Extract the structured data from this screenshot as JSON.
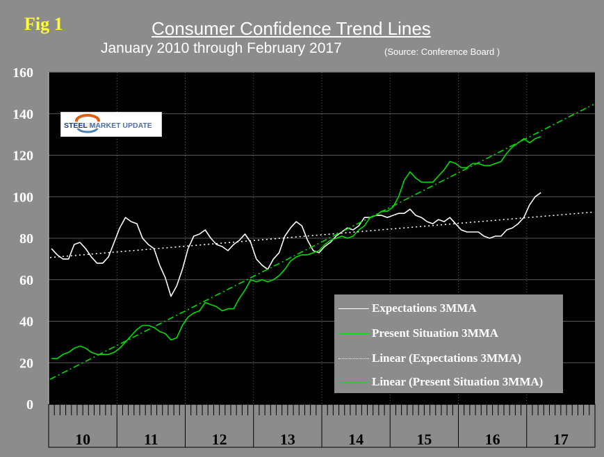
{
  "figure_label": "Fig 1",
  "title": "Consumer Confidence Trend Lines",
  "subtitle": "January 2010 through February 2017",
  "source": "(Source: Conference Board )",
  "logo": {
    "text_part1": "STEEL",
    "text_part2": "MARKET UPDATE"
  },
  "colors": {
    "background": "#8c8c8c",
    "plot_bg": "#000000",
    "expectations": "#ffffff",
    "present": "#00dd00"
  },
  "chart_data": {
    "type": "line",
    "title": "Consumer Confidence Trend Lines",
    "ylim": [
      0,
      160
    ],
    "yticks": [
      0,
      20,
      40,
      60,
      80,
      100,
      120,
      140,
      160
    ],
    "year_labels": [
      "10",
      "11",
      "12",
      "13",
      "14",
      "15",
      "16",
      "17"
    ],
    "x_start": "2010-01",
    "months_per_year": 12,
    "grid": true,
    "legend_position": "bottom-right",
    "series": [
      {
        "name": "Expectations 3MMA",
        "style": "solid",
        "color": "#ffffff",
        "values": [
          75,
          72,
          70,
          70,
          77,
          78,
          75,
          71,
          68,
          68,
          71,
          78,
          85,
          90,
          88,
          87,
          80,
          77,
          75,
          67,
          61,
          52,
          57,
          65,
          75,
          81,
          82,
          84,
          80,
          77,
          76,
          74,
          77,
          79,
          82,
          78,
          70,
          67,
          65,
          70,
          73,
          81,
          85,
          88,
          86,
          79,
          74,
          73,
          76,
          78,
          81,
          83,
          85,
          84,
          86,
          90,
          90,
          91,
          91,
          90,
          91,
          92,
          92,
          94,
          91,
          90,
          88,
          87,
          89,
          88,
          90,
          87,
          84,
          83,
          83,
          83,
          81,
          80,
          81,
          81,
          84,
          85,
          87,
          90,
          96,
          100,
          102
        ]
      },
      {
        "name": "Present Situation 3MMA",
        "style": "solid",
        "color": "#00dd00",
        "values": [
          22,
          22,
          24,
          25,
          27,
          28,
          27,
          25,
          24,
          24,
          24,
          25,
          27,
          30,
          33,
          36,
          38,
          38,
          37,
          35,
          34,
          31,
          32,
          38,
          42,
          44,
          45,
          49,
          48,
          47,
          45,
          46,
          46,
          51,
          55,
          60,
          59,
          60,
          59,
          60,
          62,
          65,
          69,
          71,
          72,
          72,
          73,
          74,
          77,
          79,
          80,
          81,
          80,
          81,
          84,
          86,
          90,
          91,
          93,
          93,
          95,
          100,
          108,
          112,
          109,
          107,
          107,
          107,
          110,
          113,
          117,
          116,
          114,
          114,
          116,
          116,
          115,
          115,
          116,
          117,
          121,
          124,
          126,
          128,
          126,
          128,
          129
        ]
      },
      {
        "name": "Linear (Expectations 3MMA)",
        "style": "dotted",
        "color": "#ffffff",
        "fit": {
          "start": 70.7,
          "end": 92.6
        }
      },
      {
        "name": "Linear (Present Situation 3MMA)",
        "style": "dashdot",
        "color": "#00dd00",
        "fit": {
          "start": 12.0,
          "end": 144.5
        }
      }
    ]
  }
}
